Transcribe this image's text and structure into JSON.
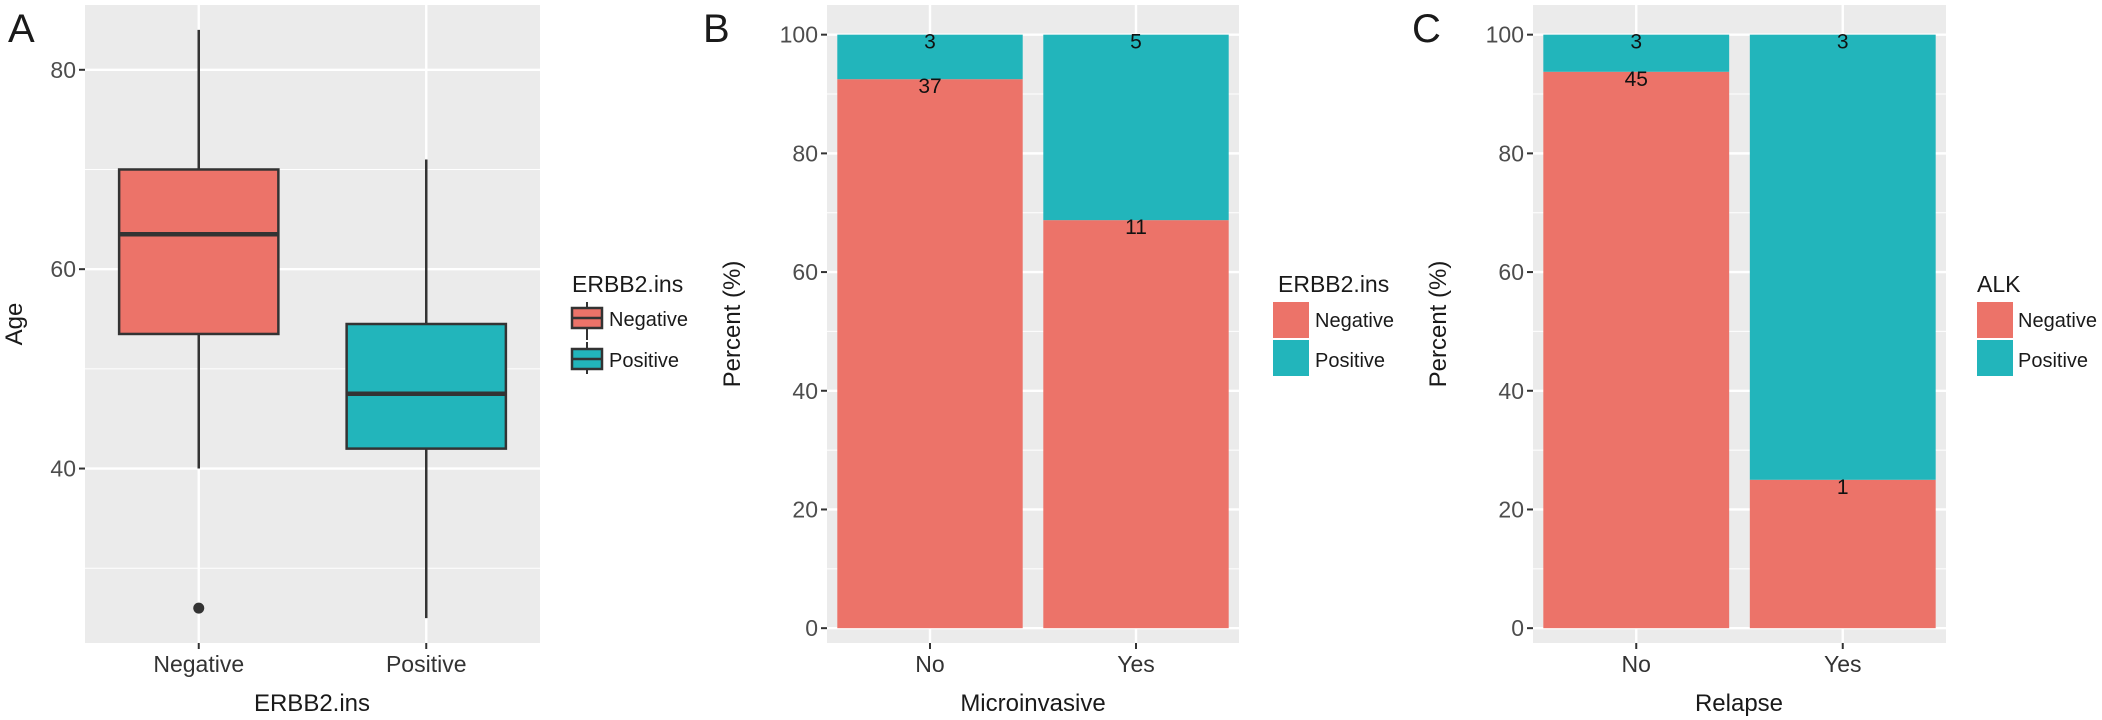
{
  "colors": {
    "negative": "#EC7369",
    "positive": "#22B5BB",
    "panel_bg": "#EBEBEB",
    "grid": "#FFFFFF"
  },
  "chart_data": [
    {
      "panel": "A",
      "type": "box",
      "xlabel": "ERBB2.ins",
      "ylabel": "Age",
      "categories": [
        "Negative",
        "Positive"
      ],
      "ylim": [
        22.5,
        86.5
      ],
      "yticks": [
        40,
        60,
        80
      ],
      "boxes": [
        {
          "category": "Negative",
          "whisker_low": 40,
          "q1": 53.5,
          "median": 63.5,
          "q3": 70,
          "whisker_high": 84,
          "outliers": [
            26
          ],
          "color_key": "negative"
        },
        {
          "category": "Positive",
          "whisker_low": 25,
          "q1": 42,
          "median": 47.5,
          "q3": 54.5,
          "whisker_high": 71,
          "outliers": [],
          "color_key": "positive"
        }
      ],
      "legend": {
        "title": "ERBB2.ins",
        "entries": [
          "Negative",
          "Positive"
        ],
        "position": "right",
        "style": "box"
      }
    },
    {
      "panel": "B",
      "type": "bar",
      "stacked": true,
      "xlabel": "Microinvasive",
      "ylabel": "Percent (%)",
      "categories": [
        "No",
        "Yes"
      ],
      "ylim": [
        -2.5,
        105
      ],
      "yticks": [
        0,
        20,
        40,
        60,
        80,
        100
      ],
      "series": [
        {
          "name": "Negative",
          "values": [
            92.5,
            68.75
          ],
          "counts": [
            "37",
            "11"
          ],
          "color_key": "negative"
        },
        {
          "name": "Positive",
          "values": [
            7.5,
            31.25
          ],
          "counts": [
            "3",
            "5"
          ],
          "color_key": "positive"
        }
      ],
      "legend": {
        "title": "ERBB2.ins",
        "entries": [
          "Negative",
          "Positive"
        ],
        "position": "right",
        "style": "fill"
      }
    },
    {
      "panel": "C",
      "type": "bar",
      "stacked": true,
      "xlabel": "Relapse",
      "ylabel": "Percent (%)",
      "categories": [
        "No",
        "Yes"
      ],
      "ylim": [
        -2.5,
        105
      ],
      "yticks": [
        0,
        20,
        40,
        60,
        80,
        100
      ],
      "series": [
        {
          "name": "Negative",
          "values": [
            93.75,
            25
          ],
          "counts": [
            "45",
            "1"
          ],
          "color_key": "negative"
        },
        {
          "name": "Positive",
          "values": [
            6.25,
            75
          ],
          "counts": [
            "3",
            "3"
          ],
          "color_key": "positive"
        }
      ],
      "legend": {
        "title": "ALK",
        "entries": [
          "Negative",
          "Positive"
        ],
        "position": "right",
        "style": "fill"
      }
    }
  ]
}
